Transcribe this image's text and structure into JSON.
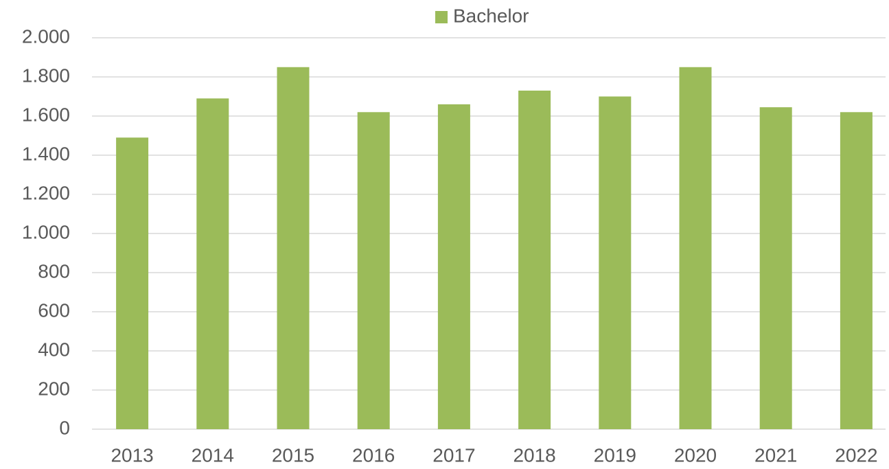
{
  "chart_data": {
    "type": "bar",
    "categories": [
      "2013",
      "2014",
      "2015",
      "2016",
      "2017",
      "2018",
      "2019",
      "2020",
      "2021",
      "2022"
    ],
    "series": [
      {
        "name": "Bachelor",
        "color": "#9bbb59",
        "values": [
          1490,
          1690,
          1850,
          1620,
          1660,
          1730,
          1700,
          1850,
          1645,
          1620
        ]
      }
    ],
    "ylim": [
      0,
      2000
    ],
    "yticks": [
      0,
      200,
      400,
      600,
      800,
      {
        "value": 1000,
        "label": "1.000"
      },
      {
        "value": 1200,
        "label": "1.200"
      },
      {
        "value": 1400,
        "label": "1.400"
      },
      {
        "value": 1600,
        "label": "1.600"
      },
      {
        "value": 1800,
        "label": "1.800"
      },
      {
        "value": 2000,
        "label": "2.000"
      }
    ],
    "grid": true,
    "legend": "top"
  }
}
